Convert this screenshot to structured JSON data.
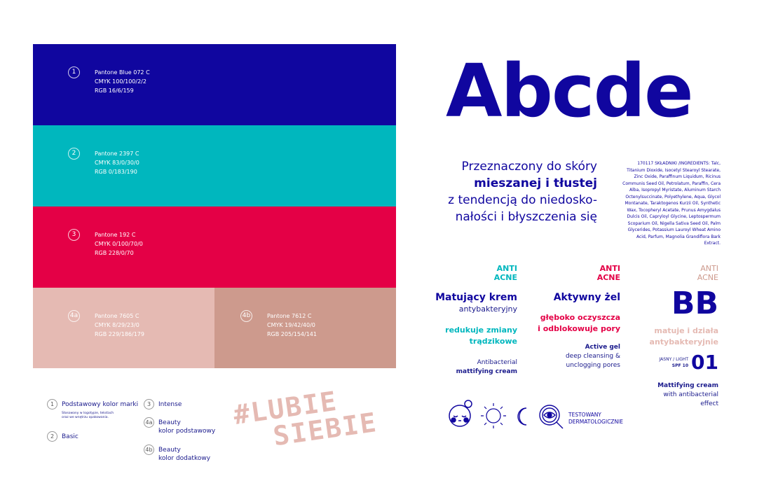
{
  "swatches": [
    {
      "num": "1",
      "pantone": "Pantone Blue 072 C",
      "cmyk": "CMYK 100/100/2/2",
      "rgb": "RGB 16/6/159",
      "color": "#10069F"
    },
    {
      "num": "2",
      "pantone": "Pantone 2397 C",
      "cmyk": "CMYK 83/0/30/0",
      "rgb": "RGB 0/183/190",
      "color": "#00B7BE"
    },
    {
      "num": "3",
      "pantone": "Pantone 192 C",
      "cmyk": "CMYK 0/100/70/0",
      "rgb": "RGB 228/0/70",
      "color": "#E40046"
    },
    {
      "num": "4a",
      "pantone": "Pantone 7605 C",
      "cmyk": "CMYK 8/29/23/0",
      "rgb": "RGB 229/186/179",
      "color": "#E5BAB3"
    },
    {
      "num": "4b",
      "pantone": "Pantone 7612 C",
      "cmyk": "CMYK 19/42/40/0",
      "rgb": "RGB 205/154/141",
      "color": "#CD9A8D"
    }
  ],
  "legend": [
    {
      "num": "1",
      "label": "Podstawowy kolor marki",
      "note": "Stosowany w logotypie, tekstach oraz we wnętrzu opakowania."
    },
    {
      "num": "2",
      "label": "Basic"
    },
    {
      "num": "3",
      "label": "Intense"
    },
    {
      "num": "4a",
      "label": "Beauty",
      "label2": "kolor podstawowy"
    },
    {
      "num": "4b",
      "label": "Beauty",
      "label2": "kolor dodatkowy"
    }
  ],
  "hashtag": [
    "#LUBIE",
    "SIEBIE"
  ],
  "brand": "Abcde",
  "intro": {
    "l1": "Przeznaczony do skóry",
    "l2": "mieszanej i tłustej",
    "l3": "z tendencją do niedosko-",
    "l4": "nałości i błyszczenia się"
  },
  "ingredients": "170117 SKŁADNIKI /INGREDIENTS: Talc, Titanium Dioxide, Isocetyl Stearoyl Stearate, Zinc Oxide, Paraffinum Liquidum, Ricinus Communis Seed Oil, Petrolatum, Paraffin, Cera Alba, Isopropyl Myristate, Aluminum Starch Octenylsuccinate, Polyethylene, Aqua, Glycol Montanate, Taraktogenos Kurzii Oil, Synthetic Wax, Tocopheryl Acetate, Prunus Amygdalus Dulcis Oil, Capryloyl Glycine, Leptospermum Scoparium Oil, Nigella Sativa Seed Oil, Palm Glycerides, Potassium Lauroyl Wheat Amino Acid, Parfum, Magnolia Grandiflora Bark Extract.",
  "products": [
    {
      "anti": "ANTI",
      "acne": "ACNE",
      "title": "Matujący krem",
      "subtitle": "antybakteryjny",
      "claim1": "redukuje zmiany",
      "claim2": "trądzikowe",
      "en1": "Antibacterial",
      "en2": "mattifying cream",
      "color": "#00B7BE"
    },
    {
      "anti": "ANTI",
      "acne": "ACNE",
      "title": "Aktywny żel",
      "claim1": "głęboko oczyszcza",
      "claim2": "i odblokowuje pory",
      "en1": "Active gel",
      "en2": "deep cleansing &",
      "en3": "unclogging pores",
      "color": "#E40046"
    },
    {
      "anti": "ANTI",
      "acne": "ACNE",
      "title": "BB",
      "claim1": "matuje i działa",
      "claim2": "antybakteryjnie",
      "shade": "JASNY / LIGHT",
      "spf": "SPF 10",
      "shade_num": "01",
      "en1": "Mattifying cream",
      "en2": "with antibacterial",
      "en3": "effect",
      "color": "#CD9A8D"
    }
  ],
  "icons": {
    "face": "face-icon",
    "sun": "sun-icon",
    "moon": "moon-icon",
    "eye": "eye-magnifier-icon",
    "tested": "TESTOWANY",
    "tested2": "DERMATOLOGICZNIE"
  }
}
